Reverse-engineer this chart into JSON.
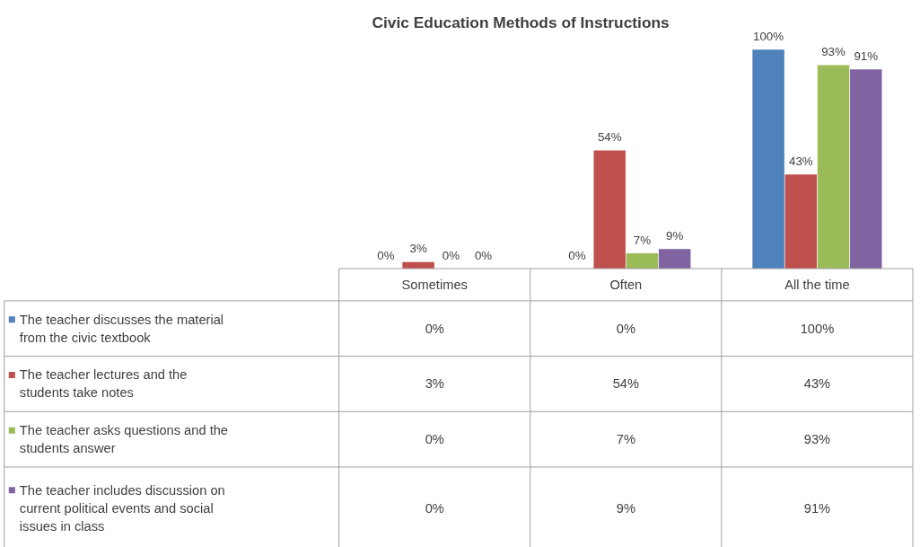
{
  "chart_data": {
    "type": "bar",
    "title": "Civic Education Methods of Instructions",
    "categories": [
      "Sometimes",
      "Often",
      "All the time"
    ],
    "series": [
      {
        "name": "The teacher discusses the material from the civic textbook",
        "color": "#4f81bd",
        "values": [
          0,
          0,
          100
        ],
        "value_labels": [
          "0%",
          "0%",
          "100%"
        ]
      },
      {
        "name": "The teacher lectures and the students take notes",
        "color": "#c0504d",
        "values": [
          3,
          54,
          43
        ],
        "value_labels": [
          "3%",
          "54%",
          "43%"
        ]
      },
      {
        "name": "The teacher asks questions and the students answer",
        "color": "#9bbb59",
        "values": [
          0,
          7,
          93
        ],
        "value_labels": [
          "0%",
          "7%",
          "93%"
        ]
      },
      {
        "name": "The teacher includes discussion on current political events and social issues in class",
        "color": "#8064a2",
        "values": [
          0,
          9,
          91
        ],
        "value_labels": [
          "0%",
          "9%",
          "91%"
        ]
      }
    ],
    "grid": false,
    "legend": "bottom left"
  }
}
